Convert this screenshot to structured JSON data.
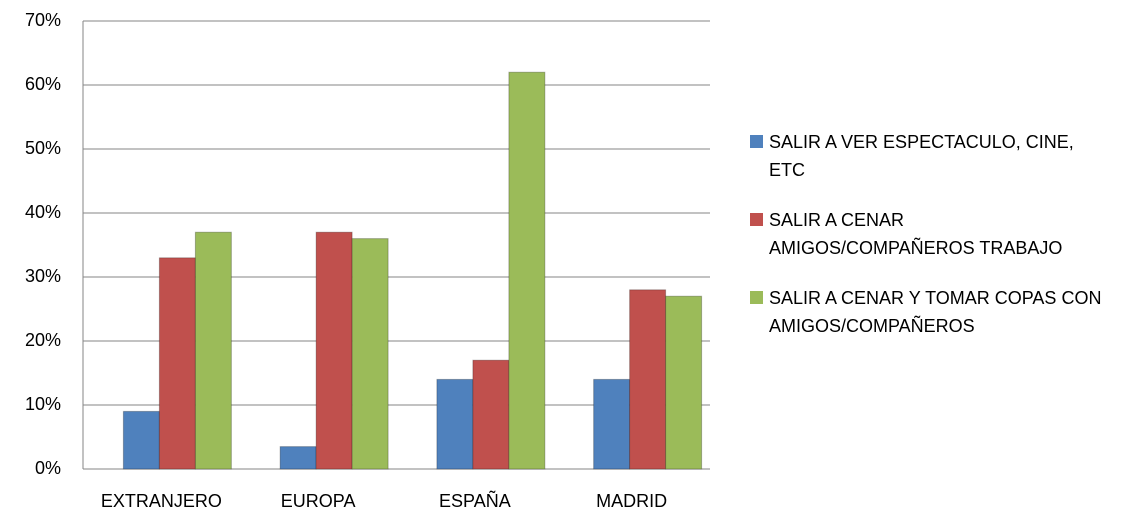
{
  "chart_data": {
    "type": "bar",
    "categories": [
      "EXTRANJERO",
      "EUROPA",
      "ESPAÑA",
      "MADRID"
    ],
    "series": [
      {
        "name": "SALIR A VER ESPECTACULO, CINE, ETC",
        "color": "#4f81bd",
        "values": [
          9,
          3.5,
          14,
          14
        ]
      },
      {
        "name": "SALIR A CENAR AMIGOS/COMPAÑEROS TRABAJO",
        "color": "#c0504d",
        "values": [
          33,
          37,
          17,
          28
        ]
      },
      {
        "name": "SALIR A CENAR Y TOMAR COPAS CON AMIGOS/COMPAÑEROS",
        "color": "#9bbb59",
        "values": [
          37,
          36,
          62,
          27
        ]
      }
    ],
    "ylim": [
      0,
      70
    ],
    "yticks": [
      {
        "value": 0,
        "label": "0%"
      },
      {
        "value": 10,
        "label": "10%"
      },
      {
        "value": 20,
        "label": "20%"
      },
      {
        "value": 30,
        "label": "30%"
      },
      {
        "value": 40,
        "label": "40%"
      },
      {
        "value": 50,
        "label": "50%"
      },
      {
        "value": 60,
        "label": "60%"
      },
      {
        "value": 70,
        "label": "70%"
      }
    ],
    "grid": true,
    "legend": "right"
  }
}
